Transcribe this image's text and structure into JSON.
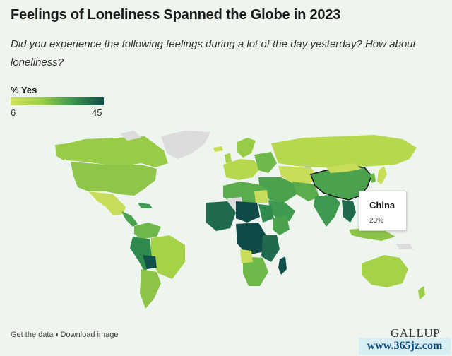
{
  "title": "Feelings of Loneliness Spanned the Globe in 2023",
  "subtitle": "Did you experience the following feelings during a lot of the day yesterday? How about loneliness?",
  "legend": {
    "label": "% Yes",
    "min": "6",
    "max": "45",
    "colors": [
      "#d4e35a",
      "#98cc46",
      "#3e9a4e",
      "#0f4a48"
    ],
    "no_data_color": "#dcdcdc"
  },
  "tooltip": {
    "country": "China",
    "value": "23%"
  },
  "footer": {
    "get_data": "Get the data",
    "separator": " • ",
    "download": "Download image"
  },
  "brand": "GALLUP",
  "watermark": "www.365jz.com"
}
